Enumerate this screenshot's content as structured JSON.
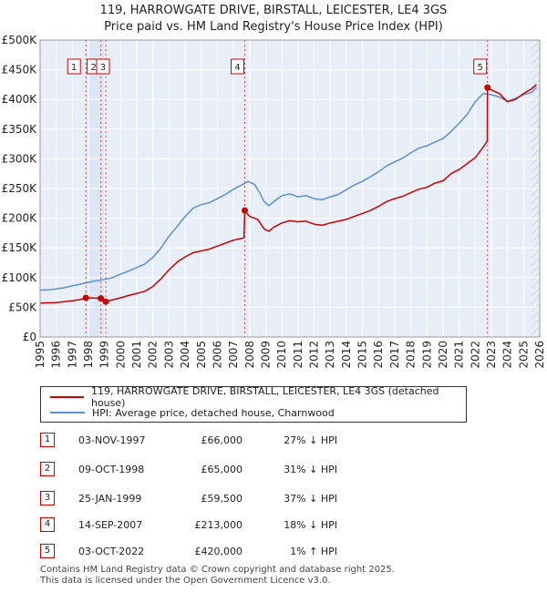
{
  "chart_data": {
    "type": "line",
    "title": "119, HARROWGATE DRIVE, BIRSTALL, LEICESTER, LE4 3GS",
    "subtitle": "Price paid vs. HM Land Registry's House Price Index (HPI)",
    "xlabel": "",
    "ylabel": "",
    "xlim": [
      1995,
      2026
    ],
    "ylim": [
      0,
      500000
    ],
    "x_ticks": [
      1995,
      1996,
      1997,
      1998,
      1999,
      2000,
      2001,
      2002,
      2003,
      2004,
      2005,
      2006,
      2007,
      2008,
      2009,
      2010,
      2011,
      2012,
      2013,
      2014,
      2015,
      2016,
      2017,
      2018,
      2019,
      2020,
      2021,
      2022,
      2023,
      2024,
      2025,
      2026
    ],
    "y_ticks": [
      0,
      50000,
      100000,
      150000,
      200000,
      250000,
      300000,
      350000,
      400000,
      450000,
      500000
    ],
    "y_tick_labels": [
      "£0",
      "£50K",
      "£100K",
      "£150K",
      "£200K",
      "£250K",
      "£300K",
      "£350K",
      "£400K",
      "£450K",
      "£500K"
    ],
    "grid": true,
    "shaded_span": [
      1997.84,
      1999.07
    ],
    "hatched_from": 2025.5,
    "series": [
      {
        "name": "119, HARROWGATE DRIVE, BIRSTALL, LEICESTER, LE4 3GS (detached house)",
        "color": "#cc0000",
        "points": [
          [
            1995.0,
            57000
          ],
          [
            1995.5,
            57500
          ],
          [
            1996.0,
            58000
          ],
          [
            1996.5,
            59500
          ],
          [
            1997.0,
            61000
          ],
          [
            1997.5,
            63000
          ],
          [
            1997.84,
            66000
          ],
          [
            1998.3,
            65500
          ],
          [
            1998.77,
            65000
          ],
          [
            1999.07,
            59500
          ],
          [
            1999.4,
            62000
          ],
          [
            2000.0,
            66000
          ],
          [
            2000.5,
            70000
          ],
          [
            2001.0,
            73500
          ],
          [
            2001.5,
            77000
          ],
          [
            2002.0,
            85000
          ],
          [
            2002.5,
            98000
          ],
          [
            2003.0,
            113000
          ],
          [
            2003.5,
            126000
          ],
          [
            2004.0,
            135000
          ],
          [
            2004.5,
            142000
          ],
          [
            2005.0,
            145000
          ],
          [
            2005.5,
            148000
          ],
          [
            2006.0,
            153000
          ],
          [
            2006.5,
            158000
          ],
          [
            2007.0,
            163000
          ],
          [
            2007.65,
            167000
          ],
          [
            2007.7,
            213000
          ],
          [
            2008.0,
            203000
          ],
          [
            2008.5,
            198000
          ],
          [
            2008.9,
            182000
          ],
          [
            2009.2,
            178000
          ],
          [
            2009.5,
            185000
          ],
          [
            2010.0,
            192000
          ],
          [
            2010.5,
            196000
          ],
          [
            2011.0,
            194000
          ],
          [
            2011.5,
            195000
          ],
          [
            2012.0,
            190000
          ],
          [
            2012.5,
            188000
          ],
          [
            2013.0,
            192000
          ],
          [
            2013.5,
            195000
          ],
          [
            2014.0,
            198000
          ],
          [
            2014.5,
            203000
          ],
          [
            2015.0,
            208000
          ],
          [
            2015.5,
            213000
          ],
          [
            2016.0,
            220000
          ],
          [
            2016.5,
            228000
          ],
          [
            2017.0,
            233000
          ],
          [
            2017.5,
            237000
          ],
          [
            2018.0,
            243000
          ],
          [
            2018.5,
            249000
          ],
          [
            2019.0,
            252000
          ],
          [
            2019.5,
            259000
          ],
          [
            2020.0,
            263000
          ],
          [
            2020.5,
            275000
          ],
          [
            2021.0,
            282000
          ],
          [
            2021.5,
            292000
          ],
          [
            2022.0,
            302000
          ],
          [
            2022.5,
            320000
          ],
          [
            2022.75,
            330000
          ],
          [
            2022.76,
            420000
          ],
          [
            2023.0,
            416000
          ],
          [
            2023.5,
            410000
          ],
          [
            2024.0,
            396000
          ],
          [
            2024.5,
            400000
          ],
          [
            2025.0,
            410000
          ],
          [
            2025.5,
            418000
          ],
          [
            2025.8,
            425000
          ]
        ]
      },
      {
        "name": "HPI: Average price, detached house, Charnwood",
        "color": "#5b8fd4",
        "points": [
          [
            1995.0,
            79000
          ],
          [
            1995.5,
            79500
          ],
          [
            1996.0,
            81000
          ],
          [
            1996.5,
            83000
          ],
          [
            1997.0,
            86000
          ],
          [
            1997.5,
            89000
          ],
          [
            1998.0,
            92000
          ],
          [
            1998.5,
            95000
          ],
          [
            1999.0,
            97000
          ],
          [
            1999.5,
            100000
          ],
          [
            2000.0,
            106000
          ],
          [
            2000.5,
            111000
          ],
          [
            2001.0,
            117000
          ],
          [
            2001.5,
            123000
          ],
          [
            2002.0,
            134000
          ],
          [
            2002.5,
            150000
          ],
          [
            2003.0,
            170000
          ],
          [
            2003.5,
            186000
          ],
          [
            2004.0,
            203000
          ],
          [
            2004.5,
            217000
          ],
          [
            2005.0,
            223000
          ],
          [
            2005.5,
            226000
          ],
          [
            2006.0,
            233000
          ],
          [
            2006.5,
            240000
          ],
          [
            2007.0,
            249000
          ],
          [
            2007.5,
            256000
          ],
          [
            2007.9,
            262000
          ],
          [
            2008.3,
            257000
          ],
          [
            2008.6,
            244000
          ],
          [
            2008.9,
            228000
          ],
          [
            2009.2,
            221000
          ],
          [
            2009.6,
            230000
          ],
          [
            2010.0,
            238000
          ],
          [
            2010.5,
            241000
          ],
          [
            2011.0,
            236000
          ],
          [
            2011.5,
            238000
          ],
          [
            2012.0,
            233000
          ],
          [
            2012.5,
            231000
          ],
          [
            2013.0,
            236000
          ],
          [
            2013.5,
            240000
          ],
          [
            2014.0,
            248000
          ],
          [
            2014.5,
            256000
          ],
          [
            2015.0,
            262000
          ],
          [
            2015.5,
            270000
          ],
          [
            2016.0,
            278000
          ],
          [
            2016.5,
            288000
          ],
          [
            2017.0,
            295000
          ],
          [
            2017.5,
            301000
          ],
          [
            2018.0,
            310000
          ],
          [
            2018.5,
            318000
          ],
          [
            2019.0,
            322000
          ],
          [
            2019.5,
            328000
          ],
          [
            2020.0,
            334000
          ],
          [
            2020.5,
            346000
          ],
          [
            2021.0,
            360000
          ],
          [
            2021.5,
            375000
          ],
          [
            2022.0,
            396000
          ],
          [
            2022.5,
            410000
          ],
          [
            2023.0,
            408000
          ],
          [
            2023.5,
            404000
          ],
          [
            2024.0,
            397000
          ],
          [
            2024.5,
            402000
          ],
          [
            2025.0,
            408000
          ],
          [
            2025.5,
            412000
          ],
          [
            2025.8,
            420000
          ]
        ]
      }
    ],
    "sale_markers": [
      {
        "id": "1",
        "year": 1997.84,
        "price": 66000
      },
      {
        "id": "2",
        "year": 1998.77,
        "price": 65000
      },
      {
        "id": "3",
        "year": 1999.07,
        "price": 59500
      },
      {
        "id": "4",
        "year": 2007.7,
        "price": 213000
      },
      {
        "id": "5",
        "year": 2022.76,
        "price": 420000
      }
    ]
  },
  "legend": {
    "property_label": "119, HARROWGATE DRIVE, BIRSTALL, LEICESTER, LE4 3GS (detached house)",
    "hpi_label": "HPI: Average price, detached house, Charnwood"
  },
  "sales_table": [
    {
      "num": "1",
      "date": "03-NOV-1997",
      "price": "£66,000",
      "hpi": "27% ↓ HPI"
    },
    {
      "num": "2",
      "date": "09-OCT-1998",
      "price": "£65,000",
      "hpi": "31% ↓ HPI"
    },
    {
      "num": "3",
      "date": "25-JAN-1999",
      "price": "£59,500",
      "hpi": "37% ↓ HPI"
    },
    {
      "num": "4",
      "date": "14-SEP-2007",
      "price": "£213,000",
      "hpi": "18% ↓ HPI"
    },
    {
      "num": "5",
      "date": "03-OCT-2022",
      "price": "£420,000",
      "hpi": "1% ↑ HPI"
    }
  ],
  "footer": {
    "line1": "Contains HM Land Registry data © Crown copyright and database right 2025.",
    "line2": "This data is licensed under the Open Government Licence v3.0."
  },
  "colors": {
    "property_line": "#cc0000",
    "hpi_line": "#5b8fd4",
    "plot_background": "#e8eef8",
    "shaded_span": "#dde6f5",
    "grid": "#ffffff"
  }
}
